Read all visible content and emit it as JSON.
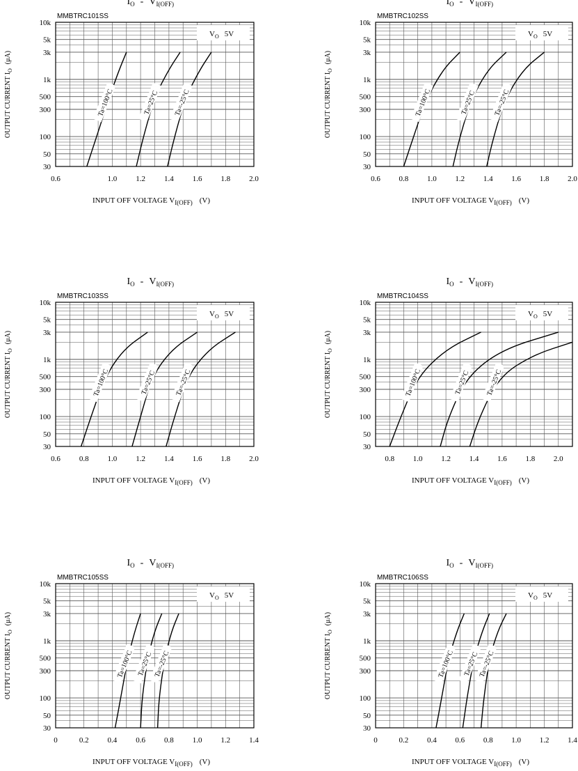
{
  "page": {
    "title_main": "I",
    "title_main_sub": "O",
    "title_dash": "-",
    "title_v": "V",
    "title_v_sub": "I(OFF)"
  },
  "chart_data": [
    {
      "type": "line",
      "part": "MMBTRC101SS",
      "condition_label": "V",
      "condition_sub": "O",
      "condition_value": "5V",
      "xlabel_main": "INPUT OFF VOLTAGE V",
      "xlabel_sub": "I(OFF)",
      "xlabel_unit": "(V)",
      "ylabel_main": "OUTPUT CURRENT I",
      "ylabel_sub": "O",
      "ylabel_unit": "(μA)",
      "xlim": [
        0.6,
        2.0
      ],
      "ylim": [
        30,
        10000
      ],
      "xticks": [
        "0.6",
        "1.0",
        "1.2",
        "1.4",
        "1.6",
        "1.8",
        "2.0"
      ],
      "xtick_values": [
        0.6,
        1.0,
        1.2,
        1.4,
        1.6,
        1.8,
        2.0
      ],
      "yticks": [
        "10k",
        "5k",
        "3k",
        "1k",
        "500",
        "300",
        "100",
        "50",
        "30"
      ],
      "ytick_values": [
        10000,
        5000,
        3000,
        1000,
        500,
        300,
        100,
        50,
        30
      ],
      "series": [
        {
          "name": "Ta=100°C",
          "x": [
            0.82,
            0.9,
            0.98,
            1.05,
            1.1
          ],
          "y": [
            30,
            120,
            500,
            1500,
            3000
          ]
        },
        {
          "name": "Ta=25°C",
          "x": [
            1.17,
            1.22,
            1.3,
            1.4,
            1.48
          ],
          "y": [
            30,
            100,
            500,
            1500,
            3000
          ]
        },
        {
          "name": "Ta=-25°C",
          "x": [
            1.39,
            1.44,
            1.52,
            1.62,
            1.7
          ],
          "y": [
            30,
            100,
            500,
            1500,
            3000
          ]
        }
      ]
    },
    {
      "type": "line",
      "part": "MMBTRC102SS",
      "condition_label": "V",
      "condition_sub": "O",
      "condition_value": "5V",
      "xlabel_main": "INPUT OFF VOLTAGE V",
      "xlabel_sub": "I(OFF)",
      "xlabel_unit": "(V)",
      "ylabel_main": "OUTPUT CURRENT I",
      "ylabel_sub": "O",
      "ylabel_unit": "(μA)",
      "xlim": [
        0.6,
        2.0
      ],
      "ylim": [
        30,
        10000
      ],
      "xticks": [
        "0.6",
        "0.8",
        "1.0",
        "1.2",
        "1.4",
        "1.6",
        "1.8",
        "2.0"
      ],
      "xtick_values": [
        0.6,
        0.8,
        1.0,
        1.2,
        1.4,
        1.6,
        1.8,
        2.0
      ],
      "yticks": [
        "10k",
        "5k",
        "3k",
        "1k",
        "500",
        "300",
        "100",
        "50",
        "30"
      ],
      "ytick_values": [
        10000,
        5000,
        3000,
        1000,
        500,
        300,
        100,
        50,
        30
      ],
      "series": [
        {
          "name": "Ta=100°C",
          "x": [
            0.8,
            0.87,
            0.96,
            1.08,
            1.2
          ],
          "y": [
            30,
            100,
            450,
            1500,
            3000
          ]
        },
        {
          "name": "Ta=25°C",
          "x": [
            1.15,
            1.2,
            1.28,
            1.4,
            1.53
          ],
          "y": [
            30,
            100,
            450,
            1500,
            3000
          ]
        },
        {
          "name": "Ta=-25°C",
          "x": [
            1.39,
            1.44,
            1.52,
            1.65,
            1.8
          ],
          "y": [
            30,
            100,
            450,
            1500,
            3000
          ]
        }
      ]
    },
    {
      "type": "line",
      "part": "MMBTRC103SS",
      "condition_label": "V",
      "condition_sub": "O",
      "condition_value": "5V",
      "xlabel_main": "INPUT OFF VOLTAGE V",
      "xlabel_sub": "I(OFF)",
      "xlabel_unit": "(V)",
      "ylabel_main": "OUTPUT CURRENT I",
      "ylabel_sub": "O",
      "ylabel_unit": "(μA)",
      "xlim": [
        0.6,
        2.0
      ],
      "ylim": [
        30,
        10000
      ],
      "xticks": [
        "0.6",
        "0.8",
        "1.0",
        "1.2",
        "1.4",
        "1.6",
        "1.8",
        "2.0"
      ],
      "xtick_values": [
        0.6,
        0.8,
        1.0,
        1.2,
        1.4,
        1.6,
        1.8,
        2.0
      ],
      "yticks": [
        "10k",
        "5k",
        "3k",
        "1k",
        "500",
        "300",
        "100",
        "50",
        "30"
      ],
      "ytick_values": [
        10000,
        5000,
        3000,
        1000,
        500,
        300,
        100,
        50,
        30
      ],
      "series": [
        {
          "name": "Ta=100°C",
          "x": [
            0.78,
            0.85,
            0.95,
            1.08,
            1.25
          ],
          "y": [
            30,
            100,
            500,
            1500,
            3000
          ]
        },
        {
          "name": "Ta=25°C",
          "x": [
            1.14,
            1.2,
            1.28,
            1.42,
            1.6
          ],
          "y": [
            30,
            100,
            500,
            1500,
            3000
          ]
        },
        {
          "name": "Ta=-25°C",
          "x": [
            1.38,
            1.44,
            1.53,
            1.68,
            1.87
          ],
          "y": [
            30,
            100,
            500,
            1500,
            3000
          ]
        }
      ]
    },
    {
      "type": "line",
      "part": "MMBTRC104SS",
      "condition_label": "V",
      "condition_sub": "O",
      "condition_value": "5V",
      "xlabel_main": "INPUT OFF VOLTAGE V",
      "xlabel_sub": "I(OFF)",
      "xlabel_unit": "(V)",
      "ylabel_main": "OUTPUT CURRENT I",
      "ylabel_sub": "O",
      "ylabel_unit": "(μA)",
      "xlim": [
        0.7,
        2.1
      ],
      "ylim": [
        30,
        10000
      ],
      "xticks": [
        "0.8",
        "1.0",
        "1.2",
        "1.4",
        "1.6",
        "1.8",
        "2.0"
      ],
      "xtick_values": [
        0.8,
        1.0,
        1.2,
        1.4,
        1.6,
        1.8,
        2.0
      ],
      "yticks": [
        "10k",
        "5k",
        "3k",
        "1k",
        "500",
        "300",
        "100",
        "50",
        "30"
      ],
      "ytick_values": [
        10000,
        5000,
        3000,
        1000,
        500,
        300,
        100,
        50,
        30
      ],
      "series": [
        {
          "name": "Ta=100°C",
          "x": [
            0.8,
            0.88,
            1.0,
            1.2,
            1.45
          ],
          "y": [
            30,
            100,
            500,
            1500,
            3000
          ]
        },
        {
          "name": "Ta=25°C",
          "x": [
            1.16,
            1.22,
            1.35,
            1.6,
            2.0
          ],
          "y": [
            30,
            100,
            500,
            1500,
            3000
          ]
        },
        {
          "name": "Ta=-25°C",
          "x": [
            1.37,
            1.44,
            1.58,
            1.82,
            2.1
          ],
          "y": [
            30,
            100,
            500,
            1200,
            2000
          ]
        }
      ]
    },
    {
      "type": "line",
      "part": "MMBTRC105SS",
      "condition_label": "V",
      "condition_sub": "O",
      "condition_value": "5V",
      "xlabel_main": "INPUT OFF VOLTAGE V",
      "xlabel_sub": "I(OFF)",
      "xlabel_unit": "(V)",
      "ylabel_main": "OUTPUT CURRENT I",
      "ylabel_sub": "O",
      "ylabel_unit": "(μA)",
      "xlim": [
        0,
        1.4
      ],
      "ylim": [
        30,
        10000
      ],
      "xticks": [
        "0",
        "0.2",
        "0.4",
        "0.6",
        "0.8",
        "1.0",
        "1.2",
        "1.4"
      ],
      "xtick_values": [
        0,
        0.2,
        0.4,
        0.6,
        0.8,
        1.0,
        1.2,
        1.4
      ],
      "yticks": [
        "10k",
        "5k",
        "3k",
        "1k",
        "500",
        "300",
        "100",
        "50",
        "30"
      ],
      "ytick_values": [
        10000,
        5000,
        3000,
        1000,
        500,
        300,
        100,
        50,
        30
      ],
      "series": [
        {
          "name": "Ta=100°C",
          "x": [
            0.42,
            0.46,
            0.51,
            0.56,
            0.6
          ],
          "y": [
            30,
            100,
            500,
            1500,
            3000
          ]
        },
        {
          "name": "Ta=25°C",
          "x": [
            0.6,
            0.61,
            0.65,
            0.7,
            0.75
          ],
          "y": [
            30,
            100,
            500,
            1500,
            3000
          ]
        },
        {
          "name": "Ta=-25°C",
          "x": [
            0.72,
            0.73,
            0.77,
            0.82,
            0.87
          ],
          "y": [
            30,
            100,
            500,
            1500,
            3000
          ]
        }
      ]
    },
    {
      "type": "line",
      "part": "MMBTRC106SS",
      "condition_label": "V",
      "condition_sub": "O",
      "condition_value": "5V",
      "xlabel_main": "INPUT OFF VOLTAGE V",
      "xlabel_sub": "I(OFF)",
      "xlabel_unit": "(V)",
      "ylabel_main": "OUTPUT CURRENT I",
      "ylabel_sub": "O",
      "ylabel_unit": "(μA)",
      "xlim": [
        0,
        1.4
      ],
      "ylim": [
        30,
        10000
      ],
      "xticks": [
        "0",
        "0.2",
        "0.4",
        "0.6",
        "0.8",
        "1.0",
        "1.2",
        "1.4"
      ],
      "xtick_values": [
        0,
        0.2,
        0.4,
        0.6,
        0.8,
        1.0,
        1.2,
        1.4
      ],
      "yticks": [
        "10k",
        "5k",
        "3k",
        "1k",
        "500",
        "300",
        "100",
        "50",
        "30"
      ],
      "ytick_values": [
        10000,
        5000,
        3000,
        1000,
        500,
        300,
        100,
        50,
        30
      ],
      "series": [
        {
          "name": "Ta=100°C",
          "x": [
            0.43,
            0.47,
            0.52,
            0.58,
            0.63
          ],
          "y": [
            30,
            100,
            500,
            1500,
            3000
          ]
        },
        {
          "name": "Ta=25°C",
          "x": [
            0.62,
            0.65,
            0.7,
            0.76,
            0.81
          ],
          "y": [
            30,
            100,
            500,
            1500,
            3000
          ]
        },
        {
          "name": "Ta=-25°C",
          "x": [
            0.75,
            0.77,
            0.81,
            0.87,
            0.93
          ],
          "y": [
            30,
            100,
            500,
            1500,
            3000
          ]
        }
      ]
    }
  ]
}
